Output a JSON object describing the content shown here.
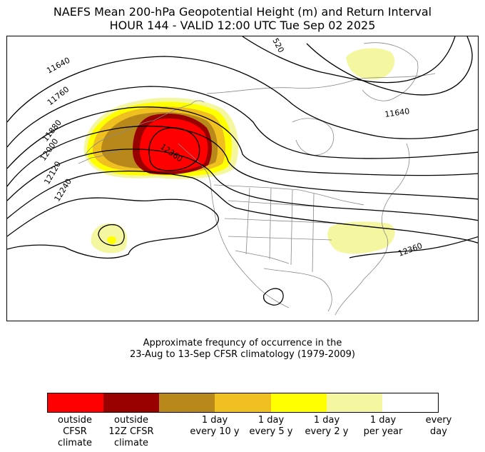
{
  "title": {
    "line1": "NAEFS Mean 200-hPa Geopotential Height (m) and Return Interval",
    "line2": "HOUR 144 - VALID 12:00 UTC Tue Sep 02 2025"
  },
  "map": {
    "contour_labels": [
      "11640",
      "11760",
      "11880",
      "12000",
      "12120",
      "12240",
      "12360",
      "11640",
      "12360",
      "520"
    ],
    "colors": {
      "outside_cfsr": "#ff0000",
      "outside_12z": "#990000",
      "every_10y": "#b8891a",
      "every_5y": "#f0c020",
      "every_2y": "#ffff00",
      "per_year": "#f5f7a0",
      "every_day": "#ffffff",
      "coast": "#888888",
      "contour": "#000000"
    }
  },
  "caption": {
    "line1": "Approximate frequncy of occurrence in the",
    "line2": "23-Aug to 13-Sep CFSR climatology (1979-2009)"
  },
  "legend": {
    "colors": [
      "#ff0000",
      "#990000",
      "#b8891a",
      "#f0c020",
      "#ffff00",
      "#f5f7a0",
      "#ffffff"
    ],
    "labels": [
      "outside\nCFSR\nclimate",
      "outside\n12Z CFSR\nclimate",
      "1 day\nevery 10 y",
      "1 day\nevery 5 y",
      "1 day\nevery 2 y",
      "1 day\nper year",
      "every\nday"
    ]
  }
}
